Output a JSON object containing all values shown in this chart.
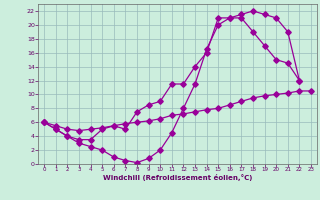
{
  "xlabel": "Windchill (Refroidissement éolien,°C)",
  "bg_color": "#cceedd",
  "line_color": "#990099",
  "grid_color": "#99bbbb",
  "axis_color": "#666666",
  "text_color": "#660066",
  "xlim": [
    -0.5,
    23.5
  ],
  "ylim": [
    0,
    23
  ],
  "xticks": [
    0,
    1,
    2,
    3,
    4,
    5,
    6,
    7,
    8,
    9,
    10,
    11,
    12,
    13,
    14,
    15,
    16,
    17,
    18,
    19,
    20,
    21,
    22,
    23
  ],
  "yticks": [
    0,
    2,
    4,
    6,
    8,
    10,
    12,
    14,
    16,
    18,
    20,
    22
  ],
  "line1_x": [
    0,
    1,
    2,
    3,
    4,
    5,
    6,
    7,
    8,
    9,
    10,
    11,
    12,
    13,
    14,
    15,
    16,
    17,
    18,
    19,
    20,
    21,
    22
  ],
  "line1_y": [
    6,
    5,
    4,
    3,
    2.5,
    2,
    1,
    0.5,
    0.2,
    0.8,
    2,
    4.5,
    8,
    11.5,
    16.5,
    20,
    21,
    21.5,
    22,
    21.5,
    21,
    19,
    12
  ],
  "line2_x": [
    0,
    1,
    2,
    3,
    4,
    5,
    6,
    7,
    8,
    9,
    10,
    11,
    12,
    13,
    14,
    15,
    16,
    17,
    18,
    19,
    20,
    21,
    22
  ],
  "line2_y": [
    6,
    5,
    4,
    3.5,
    3.5,
    5,
    5.5,
    5,
    7.5,
    8.5,
    9,
    11.5,
    11.5,
    14,
    16,
    21,
    21,
    21,
    19,
    17,
    15,
    14.5,
    12
  ],
  "line3_x": [
    0,
    1,
    2,
    3,
    4,
    5,
    6,
    7,
    8,
    9,
    10,
    11,
    12,
    13,
    14,
    15,
    16,
    17,
    18,
    19,
    20,
    21,
    22,
    23
  ],
  "line3_y": [
    6,
    5.5,
    5,
    4.8,
    5,
    5.2,
    5.5,
    5.8,
    6,
    6.2,
    6.5,
    7,
    7.2,
    7.5,
    7.8,
    8,
    8.5,
    9,
    9.5,
    9.8,
    10,
    10.2,
    10.5,
    10.5
  ]
}
